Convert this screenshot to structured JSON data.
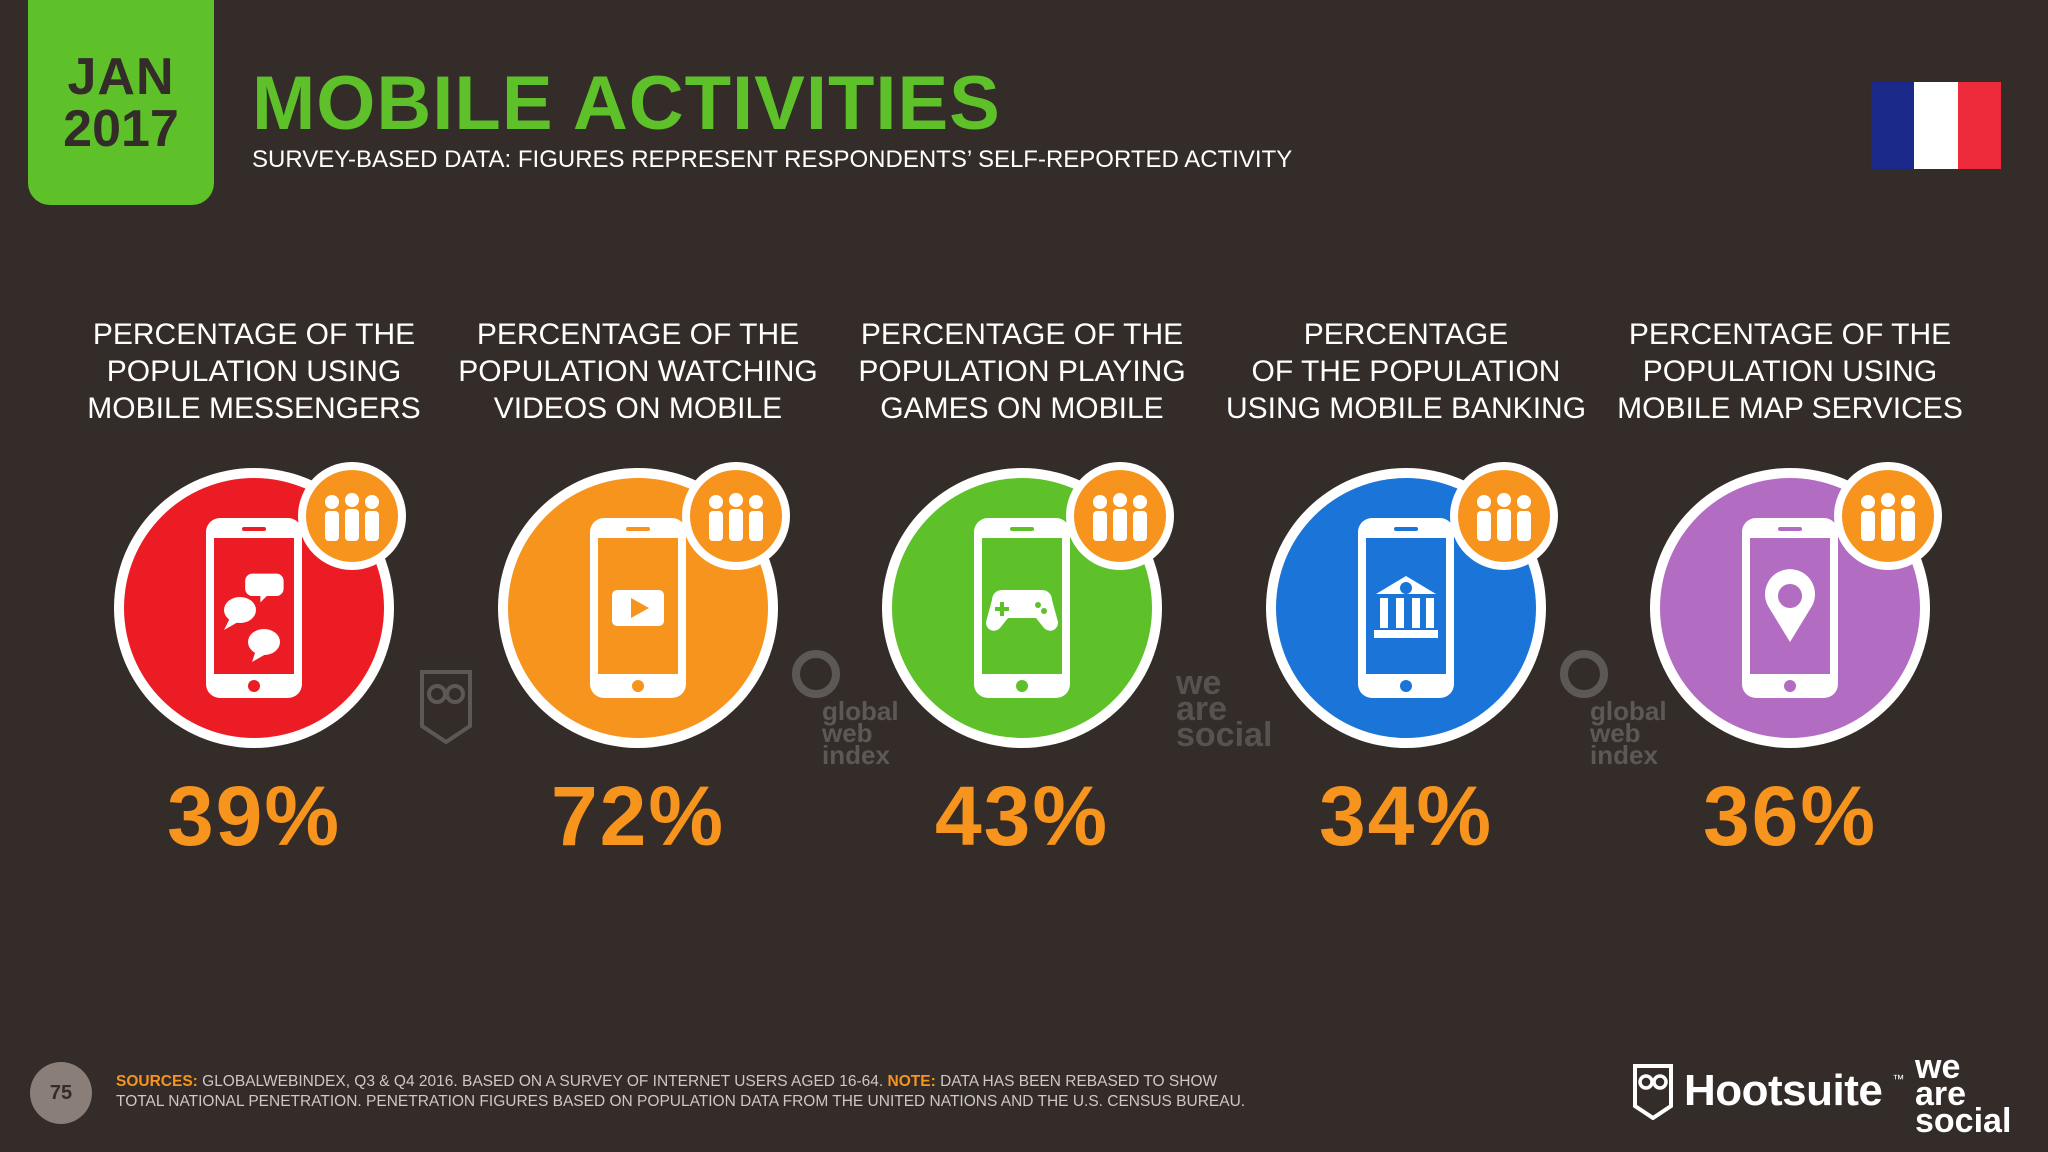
{
  "header": {
    "date_month": "JAN",
    "date_year": "2017",
    "title": "MOBILE ACTIVITIES",
    "subtitle": "SURVEY-BASED DATA: FIGURES REPRESENT RESPONDENTS’ SELF-REPORTED ACTIVITY",
    "flag": {
      "country_icon": "france-flag-icon",
      "colors": [
        "#1b2a8a",
        "#ffffff",
        "#ee2b3a"
      ]
    }
  },
  "activities": [
    {
      "label_lines": [
        "PERCENTAGE OF THE",
        "POPULATION USING",
        "MOBILE MESSENGERS"
      ],
      "value": "39%",
      "color": "#ec1c24",
      "icon": "chat-bubbles-icon"
    },
    {
      "label_lines": [
        "PERCENTAGE OF THE",
        "POPULATION WATCHING",
        "VIDEOS ON MOBILE"
      ],
      "value": "72%",
      "color": "#f7941d",
      "icon": "play-video-icon"
    },
    {
      "label_lines": [
        "PERCENTAGE OF THE",
        "POPULATION PLAYING",
        "GAMES ON MOBILE"
      ],
      "value": "43%",
      "color": "#5ec12a",
      "icon": "gamepad-icon"
    },
    {
      "label_lines": [
        "PERCENTAGE",
        "OF THE POPULATION",
        "USING MOBILE BANKING"
      ],
      "value": "34%",
      "color": "#1b75d8",
      "icon": "bank-icon"
    },
    {
      "label_lines": [
        "PERCENTAGE OF THE",
        "POPULATION USING",
        "MOBILE MAP SERVICES"
      ],
      "value": "36%",
      "color": "#b26cc1",
      "icon": "map-pin-icon"
    }
  ],
  "badge_color": "#f7941d",
  "watermarks": {
    "gwi": [
      "global",
      "web",
      "index"
    ],
    "was": [
      "we",
      "are",
      "social"
    ]
  },
  "footer": {
    "page_number": "75",
    "sources_label": "SOURCES:",
    "sources_text": " GLOBALWEBINDEX, Q3 & Q4 2016. BASED ON A SURVEY OF INTERNET USERS AGED 16-64. ",
    "note_label": "NOTE:",
    "note_text": " DATA HAS BEEN REBASED TO SHOW",
    "line2": "TOTAL NATIONAL PENETRATION. PENETRATION FIGURES BASED ON POPULATION DATA FROM THE UNITED NATIONS AND THE U.S. CENSUS BUREAU.",
    "hootsuite": "Hootsuite",
    "hootsuite_tm": "™",
    "was_logo": [
      "we",
      "are",
      "social"
    ]
  }
}
